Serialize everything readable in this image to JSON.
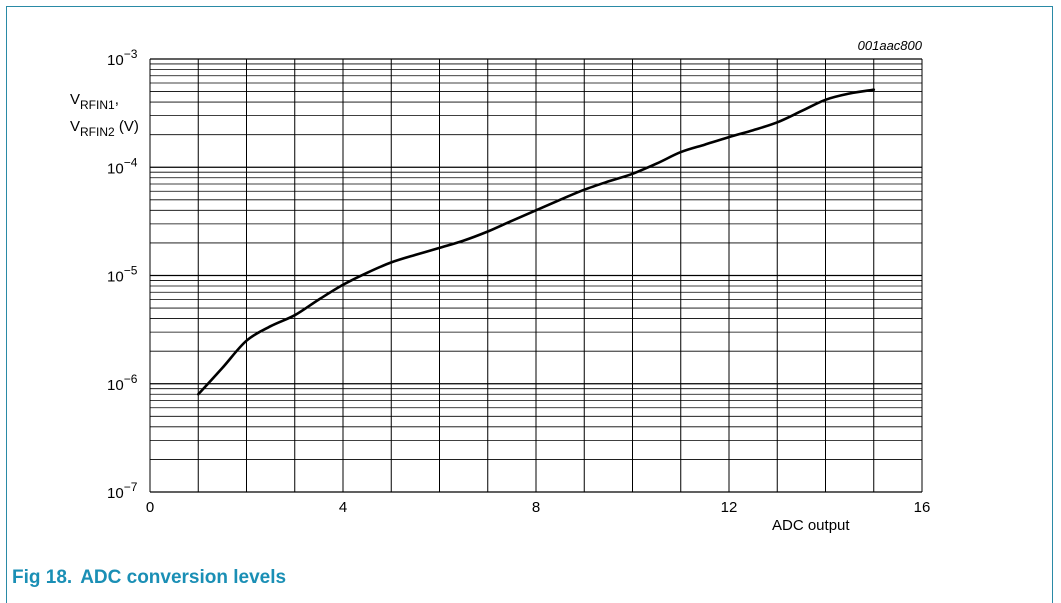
{
  "figure": {
    "code": "001aac800",
    "caption_number": "Fig 18.",
    "caption_title": "ADC conversion levels"
  },
  "colors": {
    "frame": "#2a8aa6",
    "caption": "#1a8fb5",
    "curve": "#000000",
    "grid": "#000000"
  },
  "chart_data": {
    "type": "line",
    "scale_y": "log",
    "xlabel": "ADC output",
    "ylabel_line1": {
      "main": "V",
      "sub": "RFIN1",
      "tail": ","
    },
    "ylabel_line2": {
      "main": "V",
      "sub": "RFIN2",
      "tail": " (V)"
    },
    "xlim": [
      0,
      16
    ],
    "ylim": [
      1e-07,
      0.001
    ],
    "x_ticks": [
      0,
      4,
      8,
      12,
      16
    ],
    "y_ticks": [
      {
        "base": "10",
        "exp": "−7",
        "value": 1e-07
      },
      {
        "base": "10",
        "exp": "−6",
        "value": 1e-06
      },
      {
        "base": "10",
        "exp": "−5",
        "value": 1e-05
      },
      {
        "base": "10",
        "exp": "−4",
        "value": 0.0001
      },
      {
        "base": "10",
        "exp": "−3",
        "value": 0.001
      }
    ],
    "grid": true,
    "series": [
      {
        "x": [
          1,
          1.5,
          2,
          2.5,
          3,
          3.5,
          4,
          4.5,
          5,
          5.5,
          6,
          6.5,
          7,
          7.5,
          8,
          8.5,
          9,
          9.5,
          10,
          10.5,
          11,
          11.5,
          12,
          12.5,
          13,
          13.5,
          14,
          14.5,
          15
        ],
        "y": [
          8e-07,
          1.4e-06,
          2.5e-06,
          3.4e-06,
          4.3e-06,
          6e-06,
          8.2e-06,
          1.06e-05,
          1.32e-05,
          1.55e-05,
          1.8e-05,
          2.1e-05,
          2.55e-05,
          3.2e-05,
          4e-05,
          5e-05,
          6.2e-05,
          7.4e-05,
          8.7e-05,
          0.000108,
          0.000138,
          0.000162,
          0.00019,
          0.00022,
          0.00026,
          0.00033,
          0.00042,
          0.00048,
          0.00052
        ]
      }
    ]
  }
}
